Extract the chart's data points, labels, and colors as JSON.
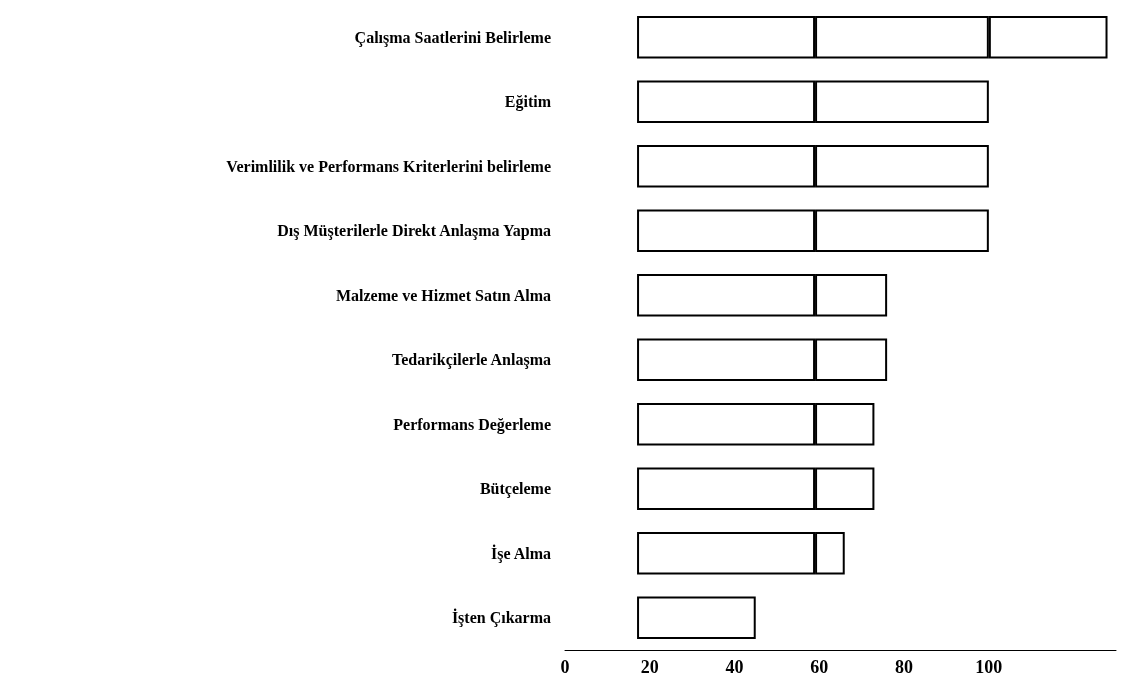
{
  "chart_data": {
    "type": "bar",
    "orientation": "horizontal",
    "categories": [
      "Çalışma Saatlerini Belirleme",
      "Eğitim",
      "Verimlilik ve Performans Kriterlerini belirleme",
      "Dış Müşterilerle Direkt Anlaşma Yapma",
      "Malzeme ve Hizmet Satın Alma",
      "Tedarikçilerle Anlaşma",
      "Performans Değerleme",
      "Bütçeleme",
      "İşe Alma",
      "İşten Çıkarma"
    ],
    "series": [
      {
        "color": "#ffffff",
        "base": [
          17,
          17,
          17,
          17,
          17,
          17,
          17,
          17,
          17,
          17
        ],
        "values": [
          42,
          42,
          42,
          42,
          42,
          42,
          42,
          42,
          42,
          28
        ]
      },
      {
        "color": "#ffffff",
        "base": [
          59,
          59,
          59,
          59,
          59,
          59,
          59,
          59,
          59,
          null
        ],
        "values": [
          41,
          41,
          41,
          41,
          17,
          17,
          14,
          14,
          7,
          null
        ]
      },
      {
        "color": "#ffffff",
        "base": [
          100,
          null,
          null,
          null,
          null,
          null,
          null,
          null,
          null,
          null
        ],
        "values": [
          28,
          null,
          null,
          null,
          null,
          null,
          null,
          null,
          null,
          null
        ]
      }
    ],
    "xlim": [
      0,
      130
    ],
    "xticks": [
      0,
      20,
      40,
      60,
      80,
      100
    ],
    "grid": false
  }
}
